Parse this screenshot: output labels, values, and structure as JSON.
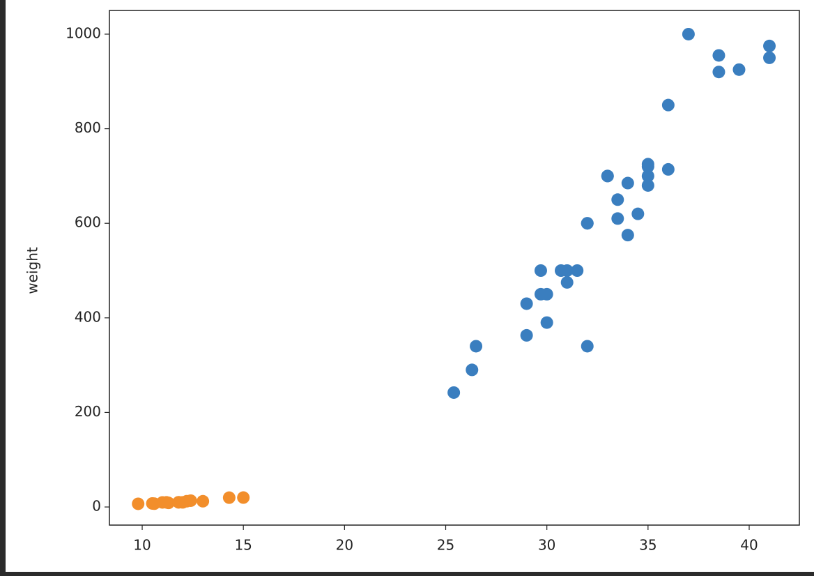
{
  "chart_data": {
    "type": "scatter",
    "ylabel": "weight",
    "xlim": [
      8.38,
      42.48
    ],
    "ylim": [
      -38.3,
      1050.1
    ],
    "xticks": [
      10,
      15,
      20,
      25,
      30,
      35,
      40
    ],
    "yticks": [
      0,
      200,
      400,
      600,
      800,
      1000
    ],
    "series": [
      {
        "color": "#3a7ebf",
        "x": [
          25.4,
          26.3,
          26.5,
          29.0,
          29.0,
          29.7,
          29.7,
          30.0,
          30.0,
          30.7,
          31.0,
          31.0,
          31.5,
          32.0,
          32.0,
          32.0,
          33.0,
          33.0,
          33.5,
          33.5,
          34.0,
          34.0,
          34.5,
          35.0,
          35.0,
          35.0,
          35.0,
          36.0,
          36.0,
          37.0,
          38.5,
          38.5,
          39.5,
          41.0,
          41.0
        ],
        "values": [
          242,
          290,
          340,
          363,
          430,
          450,
          500,
          390,
          450,
          500,
          475,
          500,
          500,
          340,
          600,
          600,
          700,
          700,
          610,
          650,
          575,
          685,
          620,
          680,
          700,
          725,
          720,
          714,
          850,
          1000,
          920,
          955,
          925,
          975,
          950
        ]
      },
      {
        "color": "#f28e2b",
        "x": [
          9.8,
          10.5,
          10.6,
          11.0,
          11.2,
          11.3,
          11.8,
          11.8,
          12.0,
          12.2,
          12.4,
          13.0,
          14.3,
          15.0
        ],
        "values": [
          6.7,
          7.5,
          7.0,
          9.7,
          9.8,
          8.7,
          10.0,
          9.9,
          9.8,
          12.2,
          13.4,
          12.2,
          19.7,
          19.9
        ]
      }
    ]
  }
}
